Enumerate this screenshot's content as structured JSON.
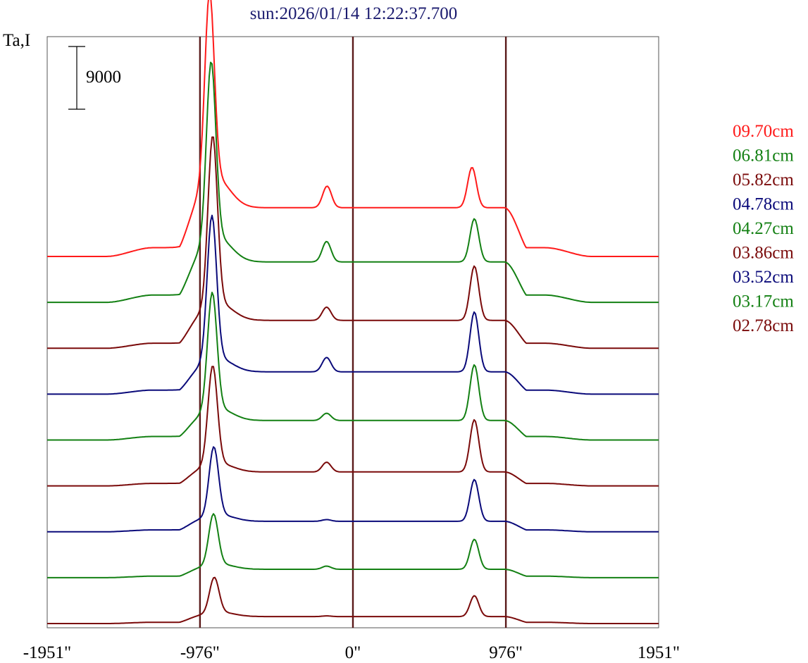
{
  "chart_data": {
    "type": "line",
    "title": "sun:2026/01/14 12:22:37.700",
    "ylabel": "Ta,I",
    "xlabel": "",
    "scale_bar_label": "9000",
    "xlim": [
      -1951,
      1951
    ],
    "x_ticks": [
      {
        "value": -1951,
        "label": "-1951\""
      },
      {
        "value": -976,
        "label": "-976\""
      },
      {
        "value": 0,
        "label": "0\""
      },
      {
        "value": 976,
        "label": "976\""
      },
      {
        "value": 1951,
        "label": "1951\""
      }
    ],
    "reference_lines_x": [
      -976,
      0,
      976
    ],
    "reference_line_color": "#5a1a1a",
    "grid": false,
    "legend_position": "right",
    "series": [
      {
        "name": "09.70cm",
        "color": "#ff1a1a",
        "baseline": 0,
        "peak_left": 30000,
        "peak_mid": 8000,
        "peak_right": 12800,
        "shoulder": 7000,
        "left_pos": -915,
        "mid_pos": -165,
        "right_pos": 760
      },
      {
        "name": "06.81cm",
        "color": "#138013",
        "baseline": 0,
        "peak_left": 28000,
        "peak_mid": 7000,
        "peak_right": 12000,
        "shoulder": 5800,
        "left_pos": -905,
        "mid_pos": -168,
        "right_pos": 775
      },
      {
        "name": "05.82cm",
        "color": "#7a0a0a",
        "baseline": 0,
        "peak_left": 26000,
        "peak_mid": 4700,
        "peak_right": 11800,
        "shoulder": 4000,
        "left_pos": -895,
        "mid_pos": -168,
        "right_pos": 775
      },
      {
        "name": "04.78cm",
        "color": "#0a0a7a",
        "baseline": 0,
        "peak_left": 22000,
        "peak_mid": 4300,
        "peak_right": 11800,
        "shoulder": 3200,
        "left_pos": -900,
        "mid_pos": -168,
        "right_pos": 775
      },
      {
        "name": "04.27cm",
        "color": "#138013",
        "baseline": 0,
        "peak_left": 18000,
        "peak_mid": 3000,
        "peak_right": 10800,
        "shoulder": 2800,
        "left_pos": -898,
        "mid_pos": -168,
        "right_pos": 775
      },
      {
        "name": "03.86cm",
        "color": "#7a0a0a",
        "baseline": 0,
        "peak_left": 15000,
        "peak_mid": 2800,
        "peak_right": 9500,
        "shoulder": 2000,
        "left_pos": -895,
        "mid_pos": -168,
        "right_pos": 775
      },
      {
        "name": "03.52cm",
        "color": "#0a0a7a",
        "baseline": 0,
        "peak_left": 10500,
        "peak_mid": 1300,
        "peak_right": 7500,
        "shoulder": 1500,
        "left_pos": -888,
        "mid_pos": -168,
        "right_pos": 775
      },
      {
        "name": "03.17cm",
        "color": "#138013",
        "baseline": 0,
        "peak_left": 7800,
        "peak_mid": 1300,
        "peak_right": 5500,
        "shoulder": 1200,
        "left_pos": -890,
        "mid_pos": -168,
        "right_pos": 775
      },
      {
        "name": "02.78cm",
        "color": "#7a0a0a",
        "baseline": 0,
        "peak_left": 5500,
        "peak_mid": 800,
        "peak_right": 4000,
        "shoulder": 1000,
        "left_pos": -885,
        "mid_pos": -168,
        "right_pos": 775
      }
    ]
  }
}
